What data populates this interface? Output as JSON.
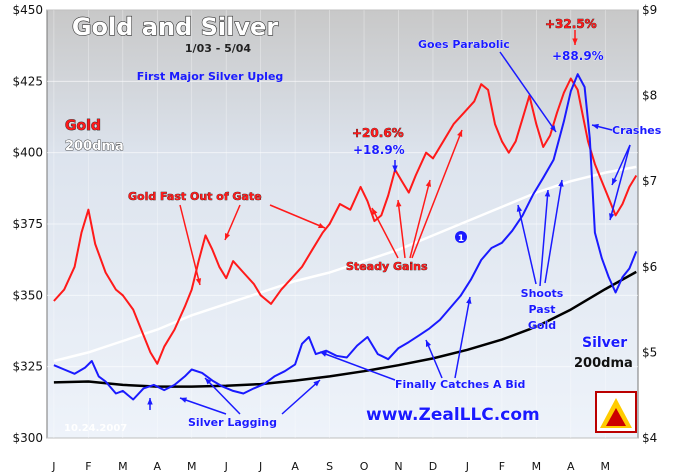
{
  "chart_data": {
    "type": "line",
    "title": "Gold and Silver",
    "subtitle": "1/03 - 5/04",
    "subtitle2": "First Major Silver Upleg",
    "date_stamp": "10.24.2007",
    "website": "www.ZealLLC.com",
    "x_ticks": [
      "J",
      "F",
      "M",
      "A",
      "M",
      "J",
      "J",
      "A",
      "S",
      "O",
      "N",
      "D",
      "J",
      "F",
      "M",
      "A",
      "M"
    ],
    "y_left": {
      "min": 300,
      "max": 450,
      "ticks": [
        "$300",
        "$325",
        "$350",
        "$375",
        "$400",
        "$425",
        "$450"
      ]
    },
    "y_right": {
      "min": 4,
      "max": 9,
      "ticks": [
        "$4",
        "$5",
        "$6",
        "$7",
        "$8",
        "$9"
      ]
    },
    "grid": true,
    "series": [
      {
        "name": "Gold",
        "axis": "left",
        "color": "#ff1a1a",
        "points": [
          [
            0.0,
            348
          ],
          [
            0.3,
            352
          ],
          [
            0.6,
            360
          ],
          [
            0.8,
            372
          ],
          [
            1.0,
            380
          ],
          [
            1.2,
            368
          ],
          [
            1.5,
            358
          ],
          [
            1.8,
            352
          ],
          [
            2.0,
            350
          ],
          [
            2.3,
            345
          ],
          [
            2.6,
            336
          ],
          [
            2.8,
            330
          ],
          [
            3.0,
            326
          ],
          [
            3.2,
            332
          ],
          [
            3.5,
            338
          ],
          [
            3.8,
            346
          ],
          [
            4.0,
            352
          ],
          [
            4.2,
            362
          ],
          [
            4.4,
            371
          ],
          [
            4.6,
            366
          ],
          [
            4.8,
            360
          ],
          [
            5.0,
            356
          ],
          [
            5.2,
            362
          ],
          [
            5.5,
            358
          ],
          [
            5.8,
            354
          ],
          [
            6.0,
            350
          ],
          [
            6.3,
            347
          ],
          [
            6.6,
            352
          ],
          [
            6.9,
            356
          ],
          [
            7.2,
            360
          ],
          [
            7.5,
            366
          ],
          [
            7.8,
            372
          ],
          [
            8.0,
            375
          ],
          [
            8.3,
            382
          ],
          [
            8.6,
            380
          ],
          [
            8.9,
            388
          ],
          [
            9.1,
            383
          ],
          [
            9.3,
            376
          ],
          [
            9.5,
            378
          ],
          [
            9.7,
            385
          ],
          [
            9.9,
            394
          ],
          [
            10.1,
            390
          ],
          [
            10.3,
            386
          ],
          [
            10.5,
            392
          ],
          [
            10.8,
            400
          ],
          [
            11.0,
            398
          ],
          [
            11.3,
            404
          ],
          [
            11.6,
            410
          ],
          [
            11.9,
            414
          ],
          [
            12.2,
            418
          ],
          [
            12.4,
            424
          ],
          [
            12.6,
            422
          ],
          [
            12.8,
            410
          ],
          [
            13.0,
            404
          ],
          [
            13.2,
            400
          ],
          [
            13.4,
            404
          ],
          [
            13.6,
            412
          ],
          [
            13.8,
            420
          ],
          [
            14.0,
            410
          ],
          [
            14.2,
            402
          ],
          [
            14.4,
            406
          ],
          [
            14.6,
            414
          ],
          [
            14.8,
            421
          ],
          [
            15.0,
            426
          ],
          [
            15.2,
            422
          ],
          [
            15.3,
            416
          ],
          [
            15.5,
            404
          ],
          [
            15.7,
            396
          ],
          [
            15.9,
            390
          ],
          [
            16.1,
            384
          ],
          [
            16.3,
            378
          ],
          [
            16.5,
            382
          ],
          [
            16.7,
            388
          ],
          [
            16.9,
            392
          ]
        ]
      },
      {
        "name": "Silver",
        "axis": "right",
        "color": "#1a1aff",
        "points": [
          [
            0.0,
            4.85
          ],
          [
            0.3,
            4.8
          ],
          [
            0.6,
            4.75
          ],
          [
            0.9,
            4.82
          ],
          [
            1.1,
            4.9
          ],
          [
            1.3,
            4.72
          ],
          [
            1.5,
            4.66
          ],
          [
            1.8,
            4.52
          ],
          [
            2.0,
            4.55
          ],
          [
            2.3,
            4.45
          ],
          [
            2.6,
            4.58
          ],
          [
            2.9,
            4.62
          ],
          [
            3.2,
            4.56
          ],
          [
            3.5,
            4.62
          ],
          [
            3.8,
            4.72
          ],
          [
            4.0,
            4.8
          ],
          [
            4.3,
            4.76
          ],
          [
            4.6,
            4.67
          ],
          [
            4.9,
            4.6
          ],
          [
            5.2,
            4.55
          ],
          [
            5.5,
            4.52
          ],
          [
            5.8,
            4.58
          ],
          [
            6.1,
            4.63
          ],
          [
            6.4,
            4.72
          ],
          [
            6.7,
            4.78
          ],
          [
            7.0,
            4.86
          ],
          [
            7.2,
            5.1
          ],
          [
            7.4,
            5.18
          ],
          [
            7.6,
            4.98
          ],
          [
            7.9,
            5.02
          ],
          [
            8.2,
            4.96
          ],
          [
            8.5,
            4.94
          ],
          [
            8.8,
            5.08
          ],
          [
            9.1,
            5.18
          ],
          [
            9.4,
            4.98
          ],
          [
            9.7,
            4.92
          ],
          [
            10.0,
            5.05
          ],
          [
            10.3,
            5.12
          ],
          [
            10.6,
            5.2
          ],
          [
            10.9,
            5.28
          ],
          [
            11.2,
            5.38
          ],
          [
            11.5,
            5.52
          ],
          [
            11.8,
            5.66
          ],
          [
            12.1,
            5.85
          ],
          [
            12.4,
            6.08
          ],
          [
            12.7,
            6.22
          ],
          [
            13.0,
            6.28
          ],
          [
            13.3,
            6.42
          ],
          [
            13.6,
            6.6
          ],
          [
            13.9,
            6.84
          ],
          [
            14.2,
            7.04
          ],
          [
            14.5,
            7.25
          ],
          [
            14.8,
            7.7
          ],
          [
            15.0,
            8.05
          ],
          [
            15.2,
            8.25
          ],
          [
            15.4,
            8.1
          ],
          [
            15.55,
            7.5
          ],
          [
            15.7,
            6.4
          ],
          [
            15.9,
            6.1
          ],
          [
            16.1,
            5.88
          ],
          [
            16.3,
            5.7
          ],
          [
            16.5,
            5.88
          ],
          [
            16.7,
            5.98
          ],
          [
            16.9,
            6.18
          ]
        ]
      },
      {
        "name": "200dma",
        "axis": "left",
        "color": "#ffffff",
        "points": [
          [
            0,
            327
          ],
          [
            1,
            330
          ],
          [
            2,
            334
          ],
          [
            3,
            338
          ],
          [
            4,
            343
          ],
          [
            5,
            347
          ],
          [
            6,
            351
          ],
          [
            7,
            355
          ],
          [
            8,
            358
          ],
          [
            9,
            362
          ],
          [
            10,
            366
          ],
          [
            11,
            371
          ],
          [
            12,
            376
          ],
          [
            13,
            381
          ],
          [
            14,
            386
          ],
          [
            15,
            390
          ],
          [
            16,
            393
          ],
          [
            16.9,
            395
          ]
        ]
      },
      {
        "name": "200dma",
        "axis": "right",
        "color": "#000000",
        "points": [
          [
            0,
            4.65
          ],
          [
            1,
            4.66
          ],
          [
            2,
            4.62
          ],
          [
            3,
            4.6
          ],
          [
            4,
            4.6
          ],
          [
            5,
            4.61
          ],
          [
            6,
            4.63
          ],
          [
            7,
            4.67
          ],
          [
            8,
            4.72
          ],
          [
            9,
            4.78
          ],
          [
            10,
            4.85
          ],
          [
            11,
            4.93
          ],
          [
            12,
            5.03
          ],
          [
            13,
            5.15
          ],
          [
            14,
            5.3
          ],
          [
            15,
            5.5
          ],
          [
            16,
            5.74
          ],
          [
            16.9,
            5.94
          ]
        ]
      }
    ],
    "annotations": {
      "gold_label": "Gold",
      "gold_dma_label": "200dma",
      "gold_fast": "Gold Fast Out of Gate",
      "steady_gains": "Steady Gains",
      "pct1_red": "+20.6%",
      "pct1_blue": "+18.9%",
      "goes_parabolic": "Goes Parabolic",
      "pct2_red": "+32.5%",
      "pct2_blue": "+88.9%",
      "crashes": "Crashes",
      "shoots1": "Shoots",
      "shoots2": "Past",
      "shoots3": "Gold",
      "silver_label": "Silver",
      "silver_dma_label": "200dma",
      "finally": "Finally Catches A Bid",
      "lagging": "Silver Lagging",
      "marker": "1"
    }
  }
}
